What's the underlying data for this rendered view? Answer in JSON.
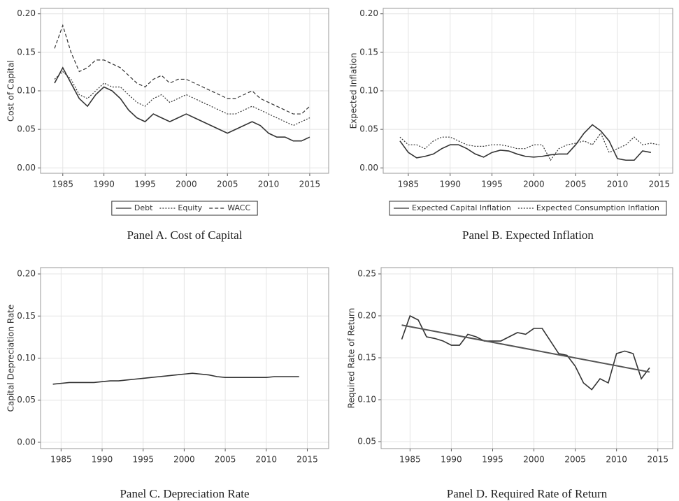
{
  "chart_data": [
    {
      "type": "line",
      "caption": "Panel A. Cost of Capital",
      "ylabel": "Cost of Capital",
      "x": [
        1984,
        1985,
        1986,
        1987,
        1988,
        1989,
        1990,
        1991,
        1992,
        1993,
        1994,
        1995,
        1996,
        1997,
        1998,
        1999,
        2000,
        2001,
        2002,
        2003,
        2004,
        2005,
        2006,
        2007,
        2008,
        2009,
        2010,
        2011,
        2012,
        2013,
        2014,
        2015
      ],
      "series": [
        {
          "name": "Debt",
          "color": "#333333",
          "line_style": "solid",
          "values": [
            0.11,
            0.13,
            0.11,
            0.09,
            0.08,
            0.095,
            0.105,
            0.1,
            0.09,
            0.075,
            0.065,
            0.06,
            0.07,
            0.065,
            0.06,
            0.065,
            0.07,
            0.065,
            0.06,
            0.055,
            0.05,
            0.045,
            0.05,
            0.055,
            0.06,
            0.055,
            0.045,
            0.04,
            0.04,
            0.035,
            0.035,
            0.04
          ]
        },
        {
          "name": "Equity",
          "color": "#333333",
          "line_style": "dotted",
          "values": [
            0.115,
            0.125,
            0.115,
            0.095,
            0.09,
            0.1,
            0.11,
            0.105,
            0.105,
            0.095,
            0.085,
            0.08,
            0.09,
            0.095,
            0.085,
            0.09,
            0.095,
            0.09,
            0.085,
            0.08,
            0.075,
            0.07,
            0.07,
            0.075,
            0.08,
            0.075,
            0.07,
            0.065,
            0.06,
            0.055,
            0.06,
            0.065
          ]
        },
        {
          "name": "WACC",
          "color": "#333333",
          "line_style": "dashed",
          "values": [
            0.155,
            0.185,
            0.15,
            0.125,
            0.13,
            0.14,
            0.14,
            0.135,
            0.13,
            0.12,
            0.11,
            0.105,
            0.115,
            0.12,
            0.11,
            0.115,
            0.115,
            0.11,
            0.105,
            0.1,
            0.095,
            0.09,
            0.09,
            0.095,
            0.1,
            0.09,
            0.085,
            0.08,
            0.075,
            0.07,
            0.07,
            0.08
          ]
        }
      ],
      "xlim": [
        1982.3,
        2017.3
      ],
      "xticks": [
        1985,
        1990,
        1995,
        2000,
        2005,
        2010,
        2015
      ],
      "ylim": [
        -0.007,
        0.207
      ],
      "yticks": [
        {
          "value": 0,
          "label": "0.00"
        },
        {
          "value": 0.05,
          "label": "0.05"
        },
        {
          "value": 0.1,
          "label": "0.10"
        },
        {
          "value": 0.15,
          "label": "0.15"
        },
        {
          "value": 0.2,
          "label": "0.20"
        }
      ],
      "grid": true,
      "legend": "bottom"
    },
    {
      "type": "line",
      "caption": "Panel B. Expected Inflation",
      "ylabel": "Expected Inflation",
      "x": [
        1984,
        1985,
        1986,
        1987,
        1988,
        1989,
        1990,
        1991,
        1992,
        1993,
        1994,
        1995,
        1996,
        1997,
        1998,
        1999,
        2000,
        2001,
        2002,
        2003,
        2004,
        2005,
        2006,
        2007,
        2008,
        2009,
        2010,
        2011,
        2012,
        2013,
        2014,
        2015
      ],
      "series": [
        {
          "name": "Expected Capital Inflation",
          "color": "#333333",
          "line_style": "solid",
          "values": [
            0.035,
            0.02,
            0.013,
            0.015,
            0.018,
            0.025,
            0.03,
            0.03,
            0.025,
            0.018,
            0.014,
            0.02,
            0.023,
            0.022,
            0.018,
            0.015,
            0.014,
            0.015,
            0.017,
            0.018,
            0.018,
            0.03,
            0.045,
            0.056,
            0.048,
            0.035,
            0.012,
            0.01,
            0.01,
            0.022,
            0.02,
            null
          ]
        },
        {
          "name": "Expected Consumption Inflation",
          "color": "#333333",
          "line_style": "dotted",
          "values": [
            0.04,
            0.03,
            0.03,
            0.025,
            0.035,
            0.04,
            0.04,
            0.035,
            0.03,
            0.028,
            0.028,
            0.03,
            0.03,
            0.028,
            0.025,
            0.025,
            0.03,
            0.03,
            0.01,
            0.025,
            0.03,
            0.032,
            0.035,
            0.03,
            0.045,
            0.02,
            0.025,
            0.03,
            0.04,
            0.03,
            0.032,
            0.03
          ]
        }
      ],
      "xlim": [
        1982.0,
        2016.6
      ],
      "xticks": [
        1985,
        1990,
        1995,
        2000,
        2005,
        2010,
        2015
      ],
      "ylim": [
        -0.007,
        0.207
      ],
      "yticks": [
        {
          "value": 0,
          "label": "0.00"
        },
        {
          "value": 0.05,
          "label": "0.05"
        },
        {
          "value": 0.1,
          "label": "0.10"
        },
        {
          "value": 0.15,
          "label": "0.15"
        },
        {
          "value": 0.2,
          "label": "0.20"
        }
      ],
      "grid": true,
      "legend": "bottom"
    },
    {
      "type": "line",
      "caption": "Panel C. Depreciation Rate",
      "ylabel": "Capital Depreciation Rate",
      "x": [
        1984,
        1985,
        1986,
        1987,
        1988,
        1989,
        1990,
        1991,
        1992,
        1993,
        1994,
        1995,
        1996,
        1997,
        1998,
        1999,
        2000,
        2001,
        2002,
        2003,
        2004,
        2005,
        2006,
        2007,
        2008,
        2009,
        2010,
        2011,
        2012,
        2013,
        2014
      ],
      "series": [
        {
          "color": "#333333",
          "line_style": "solid",
          "values": [
            0.069,
            0.07,
            0.071,
            0.071,
            0.071,
            0.071,
            0.072,
            0.073,
            0.073,
            0.074,
            0.075,
            0.076,
            0.077,
            0.078,
            0.079,
            0.08,
            0.081,
            0.082,
            0.081,
            0.08,
            0.078,
            0.077,
            0.077,
            0.077,
            0.077,
            0.077,
            0.077,
            0.078,
            0.078,
            0.078,
            0.078
          ]
        }
      ],
      "xlim": [
        1982.5,
        2017.6
      ],
      "xticks": [
        1985,
        1990,
        1995,
        2000,
        2005,
        2010,
        2015
      ],
      "ylim": [
        -0.0075,
        0.2075
      ],
      "yticks": [
        {
          "value": 0,
          "label": "0.00"
        },
        {
          "value": 0.05,
          "label": "0.05"
        },
        {
          "value": 0.1,
          "label": "0.10"
        },
        {
          "value": 0.15,
          "label": "0.15"
        },
        {
          "value": 0.2,
          "label": "0.20"
        }
      ],
      "grid": true
    },
    {
      "type": "line",
      "caption": "Panel D. Required Rate of Return",
      "ylabel": "Required Rate of Return",
      "x": [
        1984,
        1985,
        1986,
        1987,
        1988,
        1989,
        1990,
        1991,
        1992,
        1993,
        1994,
        1995,
        1996,
        1997,
        1998,
        1999,
        2000,
        2001,
        2002,
        2003,
        2004,
        2005,
        2006,
        2007,
        2008,
        2009,
        2010,
        2011,
        2012,
        2013,
        2014
      ],
      "series": [
        {
          "color": "#333333",
          "line_style": "solid",
          "values": [
            0.172,
            0.2,
            0.195,
            0.175,
            0.173,
            0.17,
            0.165,
            0.165,
            0.178,
            0.175,
            0.17,
            0.17,
            0.17,
            0.175,
            0.18,
            0.178,
            0.185,
            0.185,
            0.17,
            0.155,
            0.153,
            0.14,
            0.12,
            0.112,
            0.125,
            0.12,
            0.155,
            0.158,
            0.155,
            0.125,
            0.138
          ]
        }
      ],
      "trend": {
        "color": "#555555",
        "x": [
          1984,
          2014
        ],
        "values": [
          0.189,
          0.133
        ]
      },
      "xlim": [
        1981.5,
        2016.8
      ],
      "xticks": [
        1985,
        1990,
        1995,
        2000,
        2005,
        2010,
        2015
      ],
      "ylim": [
        0.0417,
        0.2575
      ],
      "yticks": [
        {
          "value": 0.05,
          "label": "0.05"
        },
        {
          "value": 0.1,
          "label": "0.10"
        },
        {
          "value": 0.15,
          "label": "0.15"
        },
        {
          "value": 0.2,
          "label": "0.20"
        },
        {
          "value": 0.25,
          "label": "0.25"
        }
      ],
      "grid": true
    }
  ]
}
